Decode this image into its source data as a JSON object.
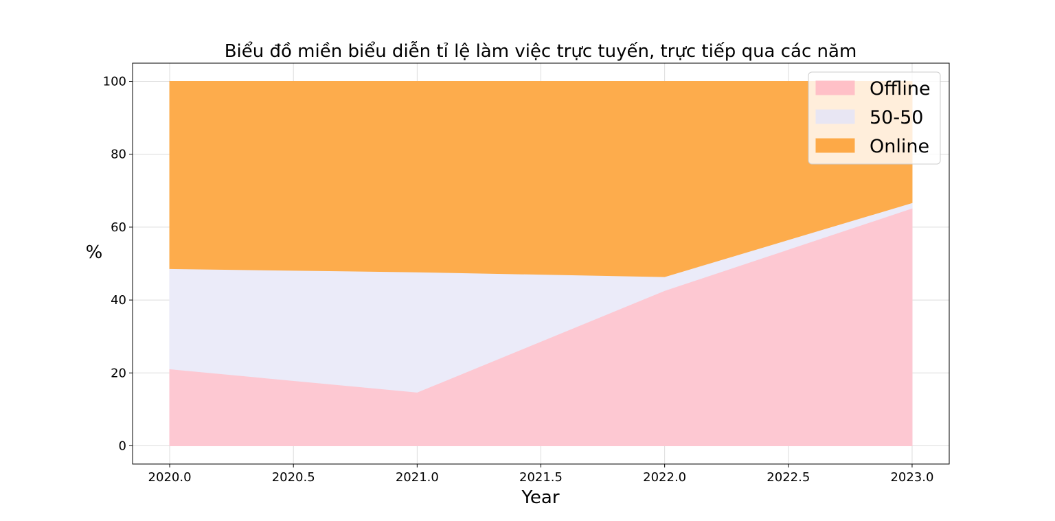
{
  "chart_data": {
    "type": "area",
    "stacked": true,
    "title": "Biểu đồ miền biểu diễn tỉ lệ làm việc trực tuyến, trực tiếp qua các năm",
    "xlabel": "Year",
    "ylabel": "%",
    "x": [
      2020,
      2021,
      2022,
      2023
    ],
    "xlim": [
      2019.85,
      2023.15
    ],
    "ylim": [
      -5,
      105
    ],
    "xticks": [
      "2020.0",
      "2020.5",
      "2021.0",
      "2021.5",
      "2022.0",
      "2022.5",
      "2023.0"
    ],
    "xtick_values": [
      2020,
      2020.5,
      2021,
      2021.5,
      2022,
      2022.5,
      2023
    ],
    "yticks": [
      "0",
      "20",
      "40",
      "60",
      "80",
      "100"
    ],
    "ytick_values": [
      0,
      20,
      40,
      60,
      80,
      100
    ],
    "grid": true,
    "legend_position": "top-right",
    "series": [
      {
        "name": "Offline",
        "values": [
          21.1,
          14.7,
          42.6,
          65.2
        ],
        "color": "#fdc8d2",
        "legend_color": "#ffc0c7"
      },
      {
        "name": "50-50",
        "values": [
          27.5,
          33.0,
          3.8,
          1.5
        ],
        "color": "#ebebf9",
        "legend_color": "#e8e6f3"
      },
      {
        "name": "Online",
        "values": [
          51.4,
          52.3,
          53.6,
          33.3
        ],
        "color": "#fdac4c",
        "legend_color": "#fda947"
      }
    ]
  }
}
